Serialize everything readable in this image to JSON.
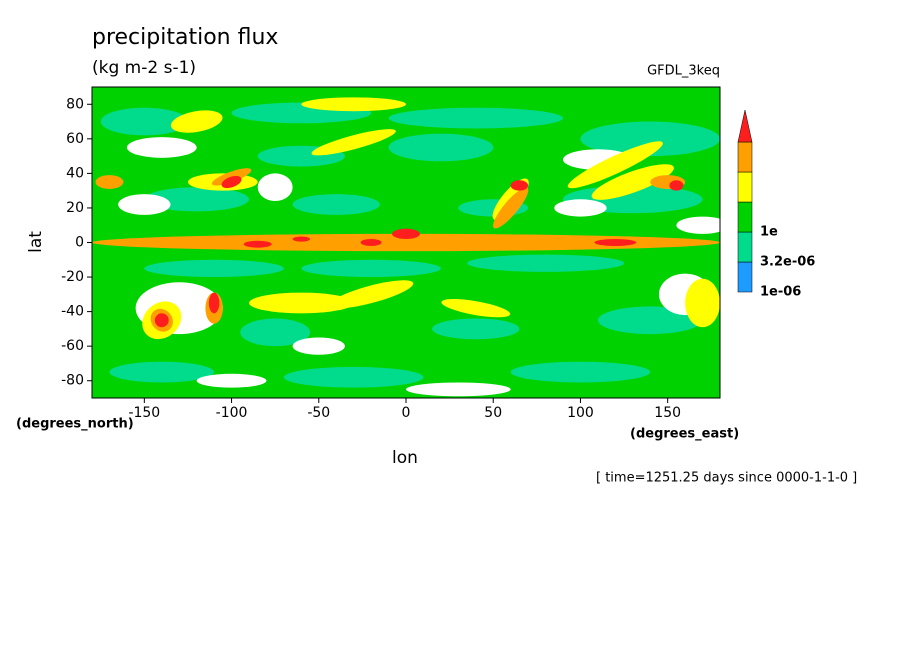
{
  "chart_data": {
    "type": "contour",
    "title": "precipitation flux",
    "subtitle": "(kg m-2 s-1)",
    "annotation": "GFDL_3keq",
    "x_label": "lon",
    "y_label": "lat",
    "x_units": "(degrees_east)",
    "y_units": "(degrees_north)",
    "footer": "[ time=1251.25 days since 0000-1-1-0 ]",
    "xlim": [
      -180,
      180
    ],
    "ylim": [
      -90,
      90
    ],
    "xticks": [
      -150,
      -100,
      -50,
      0,
      50,
      100,
      150
    ],
    "yticks": [
      -80,
      -60,
      -40,
      -20,
      0,
      20,
      40,
      60,
      80
    ],
    "colorbar": {
      "colors": [
        "#1e9bff",
        "#00dc8c",
        "#00d200",
        "#ffff00",
        "#ffa000",
        "#ff1e1e"
      ],
      "labels": [
        "1e-06",
        "3.2e-06",
        "1e"
      ]
    }
  }
}
